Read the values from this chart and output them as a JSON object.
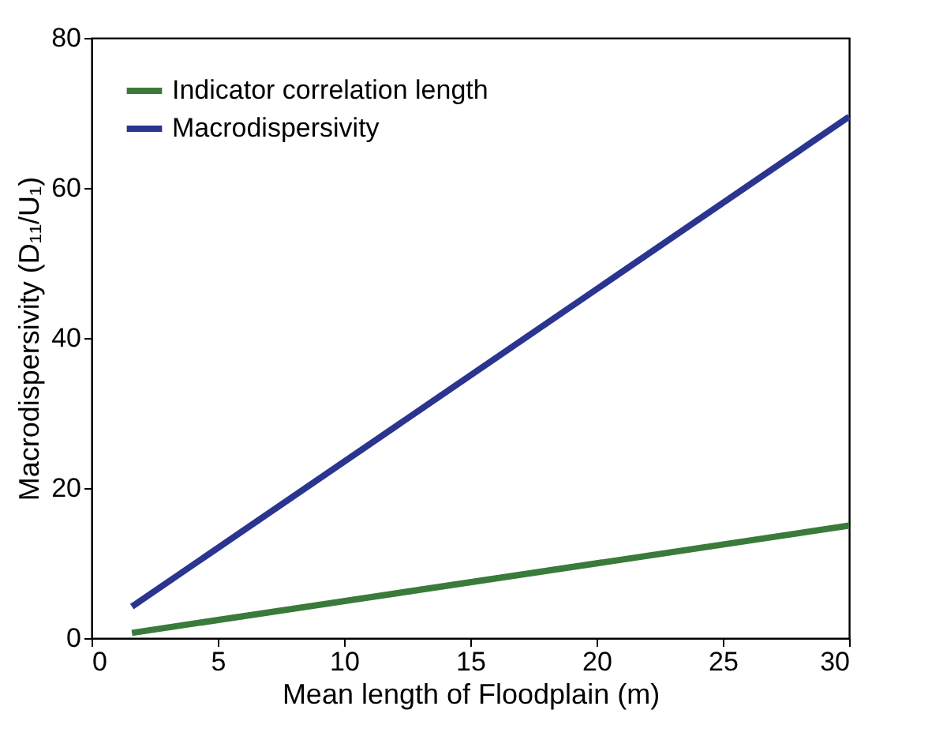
{
  "chart_data": {
    "type": "line",
    "xlabel": "Mean length of Floodplain (m)",
    "ylabel": "Macrodispersivity (D₁₁/U₁)",
    "xlim": [
      0,
      30
    ],
    "xticks": [
      0,
      5,
      10,
      15,
      20,
      25,
      30
    ],
    "ylim": [
      0,
      80
    ],
    "yticks": [
      0,
      20,
      40,
      60,
      80
    ],
    "x": [
      1.6,
      30
    ],
    "grid": false,
    "legend": "top left",
    "marker": "none",
    "line_style": "solid",
    "series": [
      {
        "name": "Indicator correlation length",
        "color": "#3a7a3a",
        "values": [
          0.7,
          15
        ]
      },
      {
        "name": "Macrodispersivity",
        "color": "#2a3590",
        "values": [
          4.2,
          69.5
        ]
      }
    ]
  }
}
